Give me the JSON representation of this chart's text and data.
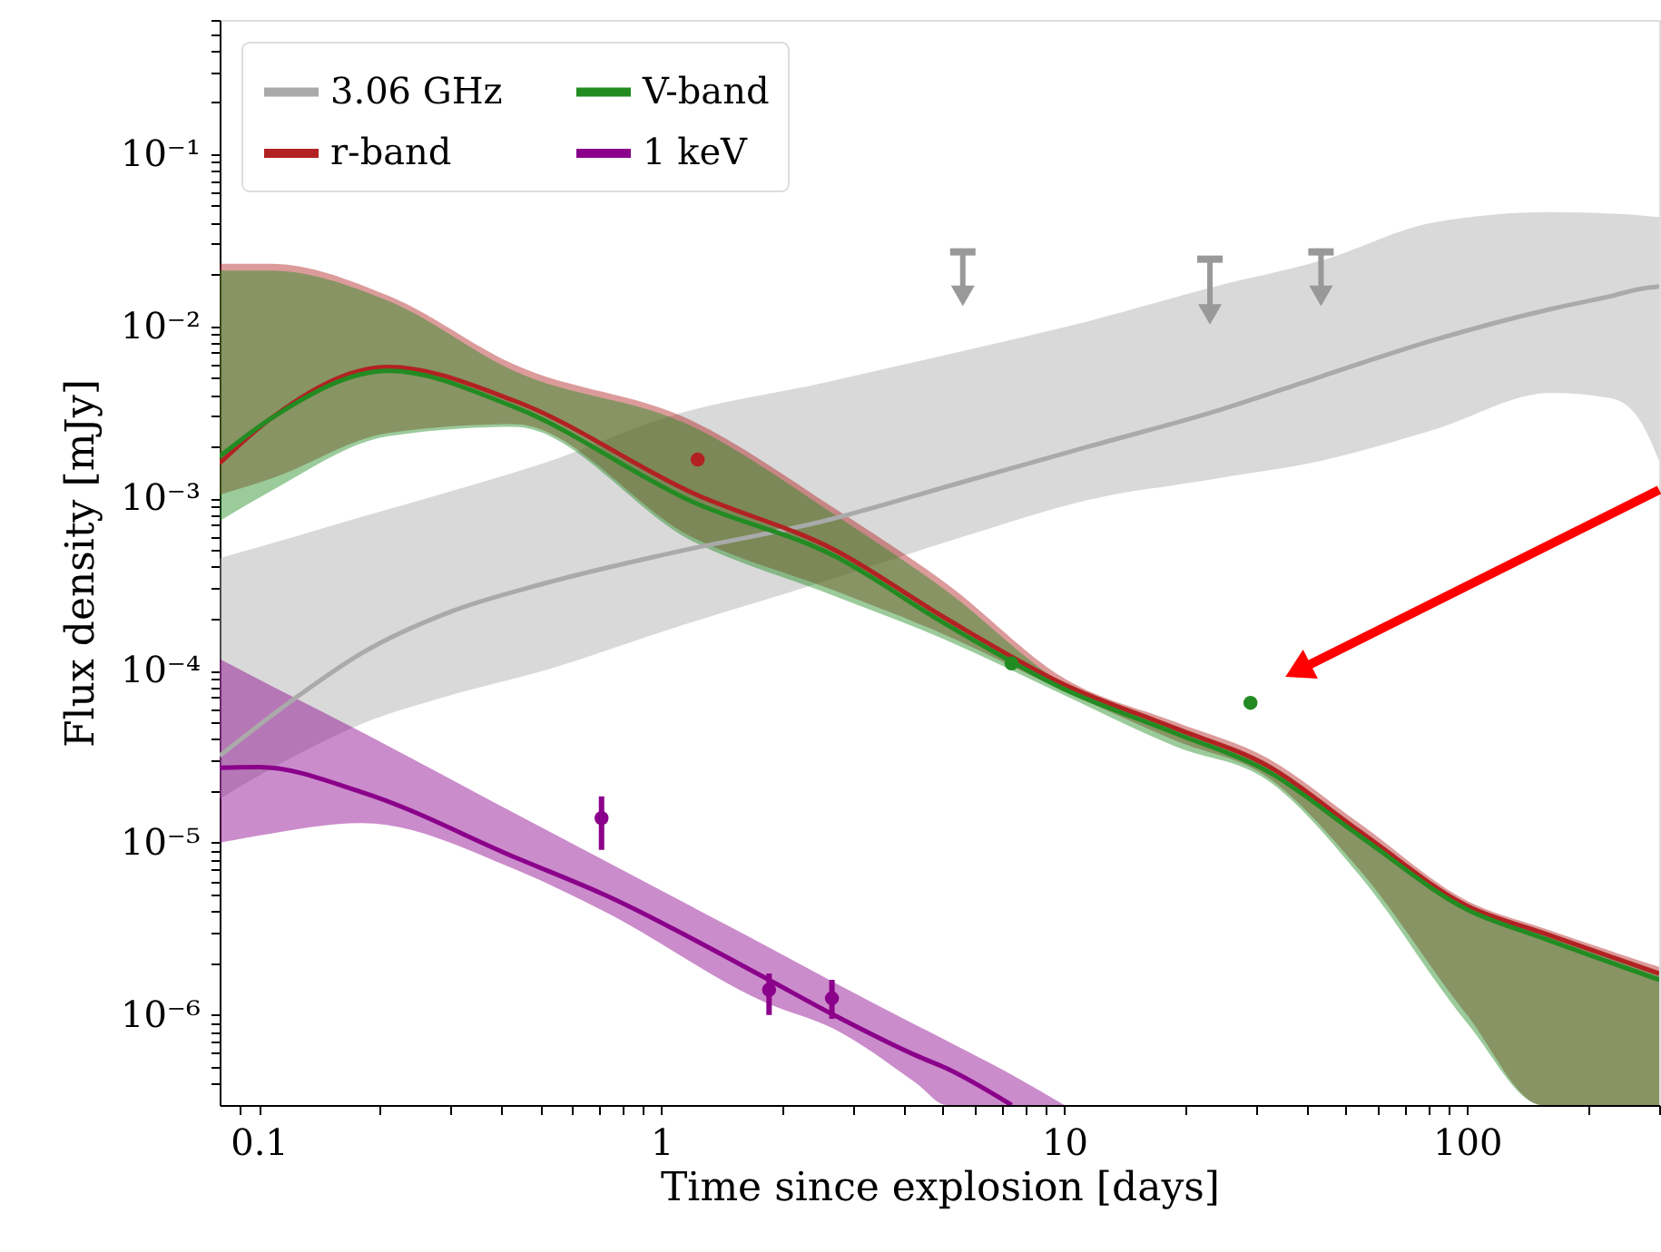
{
  "chart_data": {
    "type": "line",
    "xlabel": "Time since explosion [days]",
    "ylabel": "Flux density [mJy]",
    "log": "xy",
    "legend": "top left",
    "xlim": [
      0.08,
      300
    ],
    "ylim": [
      3e-07,
      0.6
    ],
    "xticks": [
      {
        "value": 0.09,
        "label": null
      },
      0.1,
      {
        "value": 0.2,
        "label": null
      },
      {
        "value": 0.3,
        "label": null
      },
      {
        "value": 0.4,
        "label": null
      },
      {
        "value": 0.5,
        "label": null
      },
      {
        "value": 0.6,
        "label": null
      },
      {
        "value": 0.7,
        "label": null
      },
      {
        "value": 0.8,
        "label": null
      },
      {
        "value": 0.9,
        "label": null
      },
      1,
      {
        "value": 2,
        "label": null
      },
      {
        "value": 3,
        "label": null
      },
      {
        "value": 4,
        "label": null
      },
      {
        "value": 5,
        "label": null
      },
      {
        "value": 6,
        "label": null
      },
      {
        "value": 7,
        "label": null
      },
      {
        "value": 8,
        "label": null
      },
      {
        "value": 9,
        "label": null
      },
      10,
      {
        "value": 20,
        "label": null
      },
      {
        "value": 30,
        "label": null
      },
      {
        "value": 40,
        "label": null
      },
      {
        "value": 50,
        "label": null
      },
      {
        "value": 60,
        "label": null
      },
      {
        "value": 70,
        "label": null
      },
      {
        "value": 80,
        "label": null
      },
      {
        "value": 90,
        "label": null
      },
      100,
      {
        "value": 200,
        "label": null
      },
      {
        "value": 300,
        "label": null
      }
    ],
    "yticks": [
      {
        "value": 4e-07,
        "label": null
      },
      {
        "value": 5e-07,
        "label": null
      },
      {
        "value": 6e-07,
        "label": null
      },
      {
        "value": 7e-07,
        "label": null
      },
      {
        "value": 8e-07,
        "label": null
      },
      {
        "value": 9e-07,
        "label": null
      },
      {
        "value": 1e-06,
        "label": "10⁻⁶"
      },
      {
        "value": 2e-06,
        "label": null
      },
      {
        "value": 3e-06,
        "label": null
      },
      {
        "value": 4e-06,
        "label": null
      },
      {
        "value": 5e-06,
        "label": null
      },
      {
        "value": 6e-06,
        "label": null
      },
      {
        "value": 7e-06,
        "label": null
      },
      {
        "value": 8e-06,
        "label": null
      },
      {
        "value": 9e-06,
        "label": null
      },
      {
        "value": 1e-05,
        "label": "10⁻⁵"
      },
      {
        "value": 2e-05,
        "label": null
      },
      {
        "value": 3e-05,
        "label": null
      },
      {
        "value": 4e-05,
        "label": null
      },
      {
        "value": 5e-05,
        "label": null
      },
      {
        "value": 6e-05,
        "label": null
      },
      {
        "value": 7e-05,
        "label": null
      },
      {
        "value": 8e-05,
        "label": null
      },
      {
        "value": 9e-05,
        "label": null
      },
      {
        "value": 0.0001,
        "label": "10⁻⁴"
      },
      {
        "value": 0.0002,
        "label": null
      },
      {
        "value": 0.0003,
        "label": null
      },
      {
        "value": 0.0004,
        "label": null
      },
      {
        "value": 0.0005,
        "label": null
      },
      {
        "value": 0.0006,
        "label": null
      },
      {
        "value": 0.0007,
        "label": null
      },
      {
        "value": 0.0008,
        "label": null
      },
      {
        "value": 0.0009,
        "label": null
      },
      {
        "value": 0.001,
        "label": "10⁻³"
      },
      {
        "value": 0.002,
        "label": null
      },
      {
        "value": 0.003,
        "label": null
      },
      {
        "value": 0.004,
        "label": null
      },
      {
        "value": 0.005,
        "label": null
      },
      {
        "value": 0.006,
        "label": null
      },
      {
        "value": 0.007,
        "label": null
      },
      {
        "value": 0.008,
        "label": null
      },
      {
        "value": 0.009,
        "label": null
      },
      {
        "value": 0.01,
        "label": "10⁻²"
      },
      {
        "value": 0.02,
        "label": null
      },
      {
        "value": 0.03,
        "label": null
      },
      {
        "value": 0.04,
        "label": null
      },
      {
        "value": 0.05,
        "label": null
      },
      {
        "value": 0.06,
        "label": null
      },
      {
        "value": 0.07,
        "label": null
      },
      {
        "value": 0.08,
        "label": null
      },
      {
        "value": 0.09,
        "label": null
      },
      {
        "value": 0.1,
        "label": "10⁻¹"
      },
      {
        "value": 0.2,
        "label": null
      },
      {
        "value": 0.3,
        "label": null
      },
      {
        "value": 0.4,
        "label": null
      },
      {
        "value": 0.5,
        "label": null
      },
      {
        "value": 0.6,
        "label": null
      }
    ],
    "series": [
      {
        "name": "3.06 GHz",
        "type": "line",
        "color": "#aaaaaa",
        "x": [
          0.08,
          0.123,
          0.18,
          0.3,
          0.51,
          1.05,
          2.54,
          5.5,
          11.5,
          23.7,
          43.4,
          82.6,
          162,
          229,
          271,
          300
        ],
        "values": [
          3.2e-05,
          6.9e-05,
          0.000126,
          0.00022,
          0.00032,
          0.00048,
          0.00074,
          0.00123,
          0.002,
          0.0032,
          0.0051,
          0.0083,
          0.0126,
          0.015,
          0.0165,
          0.017
        ],
        "lower": [
          1.8e-05,
          3.2e-05,
          4.9e-05,
          7.2e-05,
          0.0001,
          0.000174,
          0.00033,
          0.00059,
          0.00098,
          0.0013,
          0.00165,
          0.0025,
          0.0041,
          0.0038,
          0.00275,
          0.00165
        ],
        "upper": [
          0.00045,
          0.0006,
          0.00078,
          0.0011,
          0.0016,
          0.003,
          0.0047,
          0.0071,
          0.0107,
          0.017,
          0.024,
          0.04,
          0.046,
          0.045,
          0.044,
          0.043
        ]
      },
      {
        "name": "r-band",
        "type": "line",
        "color": "#b22222",
        "x": [
          0.08,
          0.107,
          0.21,
          0.43,
          1.2,
          2.7,
          5.1,
          10,
          19,
          32,
          54,
          100,
          154,
          300
        ],
        "values": [
          0.0016,
          0.0029,
          0.0058,
          0.0037,
          0.00107,
          0.0005,
          0.0002,
          8.3e-05,
          4.6e-05,
          2.8e-05,
          1.17e-05,
          4.3e-06,
          3e-06,
          1.74e-06
        ],
        "lower": [
          0.00105,
          0.0013,
          0.0024,
          0.0027,
          0.00059,
          0.00029,
          0.00016,
          7.6e-05,
          3.9e-05,
          2.4e-05,
          7e-06,
          1e-06,
          3e-07,
          3e-07
        ],
        "upper": [
          0.023,
          0.023,
          0.015,
          0.006,
          0.0028,
          0.00087,
          0.00032,
          9e-05,
          5e-05,
          3.1e-05,
          1.3e-05,
          4.6e-06,
          3.2e-06,
          1.9e-06
        ]
      },
      {
        "name": "V-band",
        "type": "line",
        "color": "#228b22",
        "x": [
          0.08,
          0.107,
          0.21,
          0.43,
          1.2,
          2.7,
          5.1,
          10,
          19,
          32,
          54,
          100,
          154,
          300
        ],
        "values": [
          0.00175,
          0.0029,
          0.0055,
          0.0034,
          0.00095,
          0.00046,
          0.000185,
          7.8e-05,
          4.3e-05,
          2.6e-05,
          1.1e-05,
          4.1e-06,
          2.8e-06,
          1.6e-06
        ],
        "lower": [
          0.00074,
          0.0011,
          0.0023,
          0.0026,
          0.00056,
          0.00027,
          0.00015,
          7.2e-05,
          3.6e-05,
          2.3e-05,
          6.5e-06,
          9e-07,
          3e-07,
          3e-07
        ],
        "upper": [
          0.021,
          0.021,
          0.014,
          0.0055,
          0.0026,
          0.0008,
          0.00029,
          8.3e-05,
          4.6e-05,
          2.9e-05,
          1.2e-05,
          4.3e-06,
          3e-06,
          1.7e-06
        ]
      },
      {
        "name": "1 keV",
        "type": "line",
        "color": "#8b008b",
        "x": [
          0.08,
          0.1,
          0.18,
          0.44,
          0.72,
          1.83,
          2.68,
          4.3,
          5.1,
          7.4,
          10
        ],
        "values": [
          2.73e-05,
          2.75e-05,
          1.97e-05,
          8.1e-06,
          5e-06,
          1.62e-06,
          1e-06,
          5.8e-07,
          4.9e-07,
          3e-07,
          null
        ],
        "lower": [
          1e-05,
          1.1e-05,
          1.3e-05,
          6.9e-06,
          4e-06,
          1.17e-06,
          8.3e-07,
          4e-07,
          3e-07,
          3e-07,
          3e-07
        ],
        "upper": [
          0.000117,
          8.9e-05,
          4.4e-05,
          1.45e-05,
          7.9e-06,
          2.5e-06,
          1.55e-06,
          8.7e-07,
          7.1e-07,
          4.5e-07,
          3e-07
        ]
      },
      {
        "type": "scatter",
        "color": "#999999",
        "marker": "triangle",
        "x": [
          5.6,
          23,
          43.4
        ],
        "values": [
          0.015,
          0.0117,
          0.015
        ],
        "errors": [
          [
            0.015,
            0.027
          ],
          [
            0.0117,
            0.0245
          ],
          [
            0.015,
            0.027
          ]
        ]
      },
      {
        "type": "scatter",
        "color": "#b22222",
        "marker": "circle",
        "x": [
          1.23
        ],
        "values": [
          0.00168
        ]
      },
      {
        "type": "scatter",
        "color": "#228b22",
        "marker": "circle",
        "x": [
          7.4,
          29
        ],
        "values": [
          0.00011,
          6.5e-05
        ]
      },
      {
        "type": "scatter",
        "color": "#8b008b",
        "marker": "circle",
        "x": [
          0.71,
          1.85,
          2.65
        ],
        "values": [
          1.39e-05,
          1.4e-06,
          1.25e-06
        ],
        "errors": [
          [
            9.1e-06,
            1.86e-05
          ],
          [
            1e-06,
            1.74e-06
          ],
          [
            9.5e-07,
            1.6e-06
          ]
        ]
      }
    ]
  }
}
